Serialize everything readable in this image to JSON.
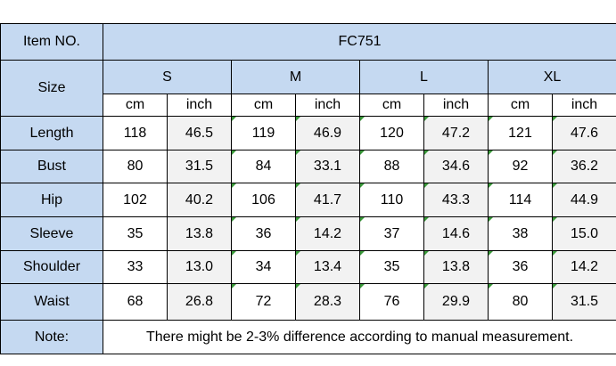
{
  "table": {
    "item_no_label": "Item NO.",
    "item_no": "FC751",
    "size_label": "Size",
    "sizes": [
      "S",
      "M",
      "L",
      "XL"
    ],
    "unit_cm": "cm",
    "unit_inch": "inch",
    "rows": [
      {
        "label": "Length",
        "values": [
          "118",
          "46.5",
          "119",
          "46.9",
          "120",
          "47.2",
          "121",
          "47.6"
        ]
      },
      {
        "label": "Bust",
        "values": [
          "80",
          "31.5",
          "84",
          "33.1",
          "88",
          "34.6",
          "92",
          "36.2"
        ]
      },
      {
        "label": "Hip",
        "values": [
          "102",
          "40.2",
          "106",
          "41.7",
          "110",
          "43.3",
          "114",
          "44.9"
        ]
      },
      {
        "label": "Sleeve",
        "values": [
          "35",
          "13.8",
          "36",
          "14.2",
          "37",
          "14.6",
          "38",
          "15.0"
        ]
      },
      {
        "label": "Shoulder",
        "values": [
          "33",
          "13.0",
          "34",
          "13.4",
          "35",
          "13.8",
          "36",
          "14.2"
        ]
      },
      {
        "label": "Waist",
        "values": [
          "68",
          "26.8",
          "72",
          "28.3",
          "76",
          "29.9",
          "80",
          "31.5"
        ]
      }
    ],
    "note_label": "Note:",
    "note_text": "There might be 2-3% difference according to manual measurement."
  },
  "colors": {
    "header_blue": "#c5d9f1",
    "inch_grey": "#f2f2f2",
    "corner_flag": "#3a9a3a"
  }
}
